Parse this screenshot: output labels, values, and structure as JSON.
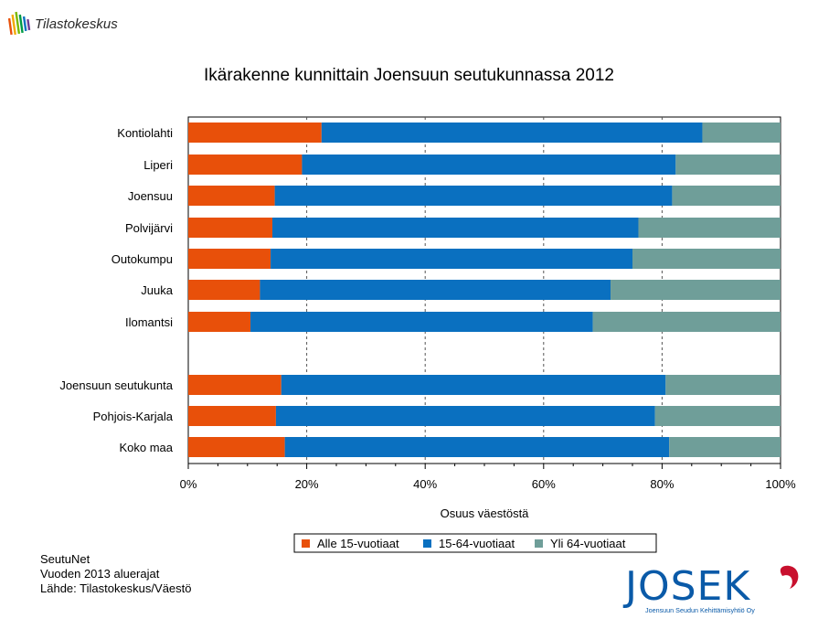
{
  "brand": {
    "name": "Tilastokeskus"
  },
  "chart_data": {
    "type": "bar",
    "orientation": "horizontal",
    "stacked": true,
    "title": "Ikärakenne kunnittain Joensuun seutukunnassa 2012",
    "xlabel": "Osuus väestöstä",
    "ylabel": "",
    "xlim": [
      0,
      100
    ],
    "x_ticks": [
      "0%",
      "20%",
      "40%",
      "60%",
      "80%",
      "100%"
    ],
    "grid": "vertical dashed",
    "legend_position": "bottom",
    "categories": [
      "Kontiolahti",
      "Liperi",
      "Joensuu",
      "Polvijärvi",
      "Outokumpu",
      "Juuka",
      "Ilomantsi",
      "Joensuun seutukunta",
      "Pohjois-Karjala",
      "Koko maa"
    ],
    "series": [
      {
        "name": "Alle 15-vuotiaat",
        "color": "#e8500a",
        "values": [
          22.5,
          19.2,
          14.6,
          14.2,
          13.9,
          12.1,
          10.5,
          15.7,
          14.8,
          16.3
        ]
      },
      {
        "name": "15-64-vuotiaat",
        "color": "#0a70c0",
        "values": [
          64.3,
          63.1,
          67.1,
          61.8,
          61.1,
          59.2,
          57.8,
          64.9,
          64.0,
          64.9
        ]
      },
      {
        "name": "Yli 64-vuotiaat",
        "color": "#6f9e99",
        "values": [
          13.2,
          17.7,
          18.3,
          24.0,
          25.0,
          28.7,
          31.7,
          19.4,
          21.2,
          18.8
        ]
      }
    ]
  },
  "footer": {
    "line1": "SeutuNet",
    "line2": "Vuoden 2013 aluerajat",
    "line3": "Lähde: Tilastokeskus/Väestö"
  },
  "josek": {
    "name": "JOSEK",
    "tagline": "Joensuun Seudun Kehittämisyhtiö Oy"
  },
  "colors": {
    "josek_blue": "#0a5aa8",
    "josek_red": "#c8102e"
  }
}
